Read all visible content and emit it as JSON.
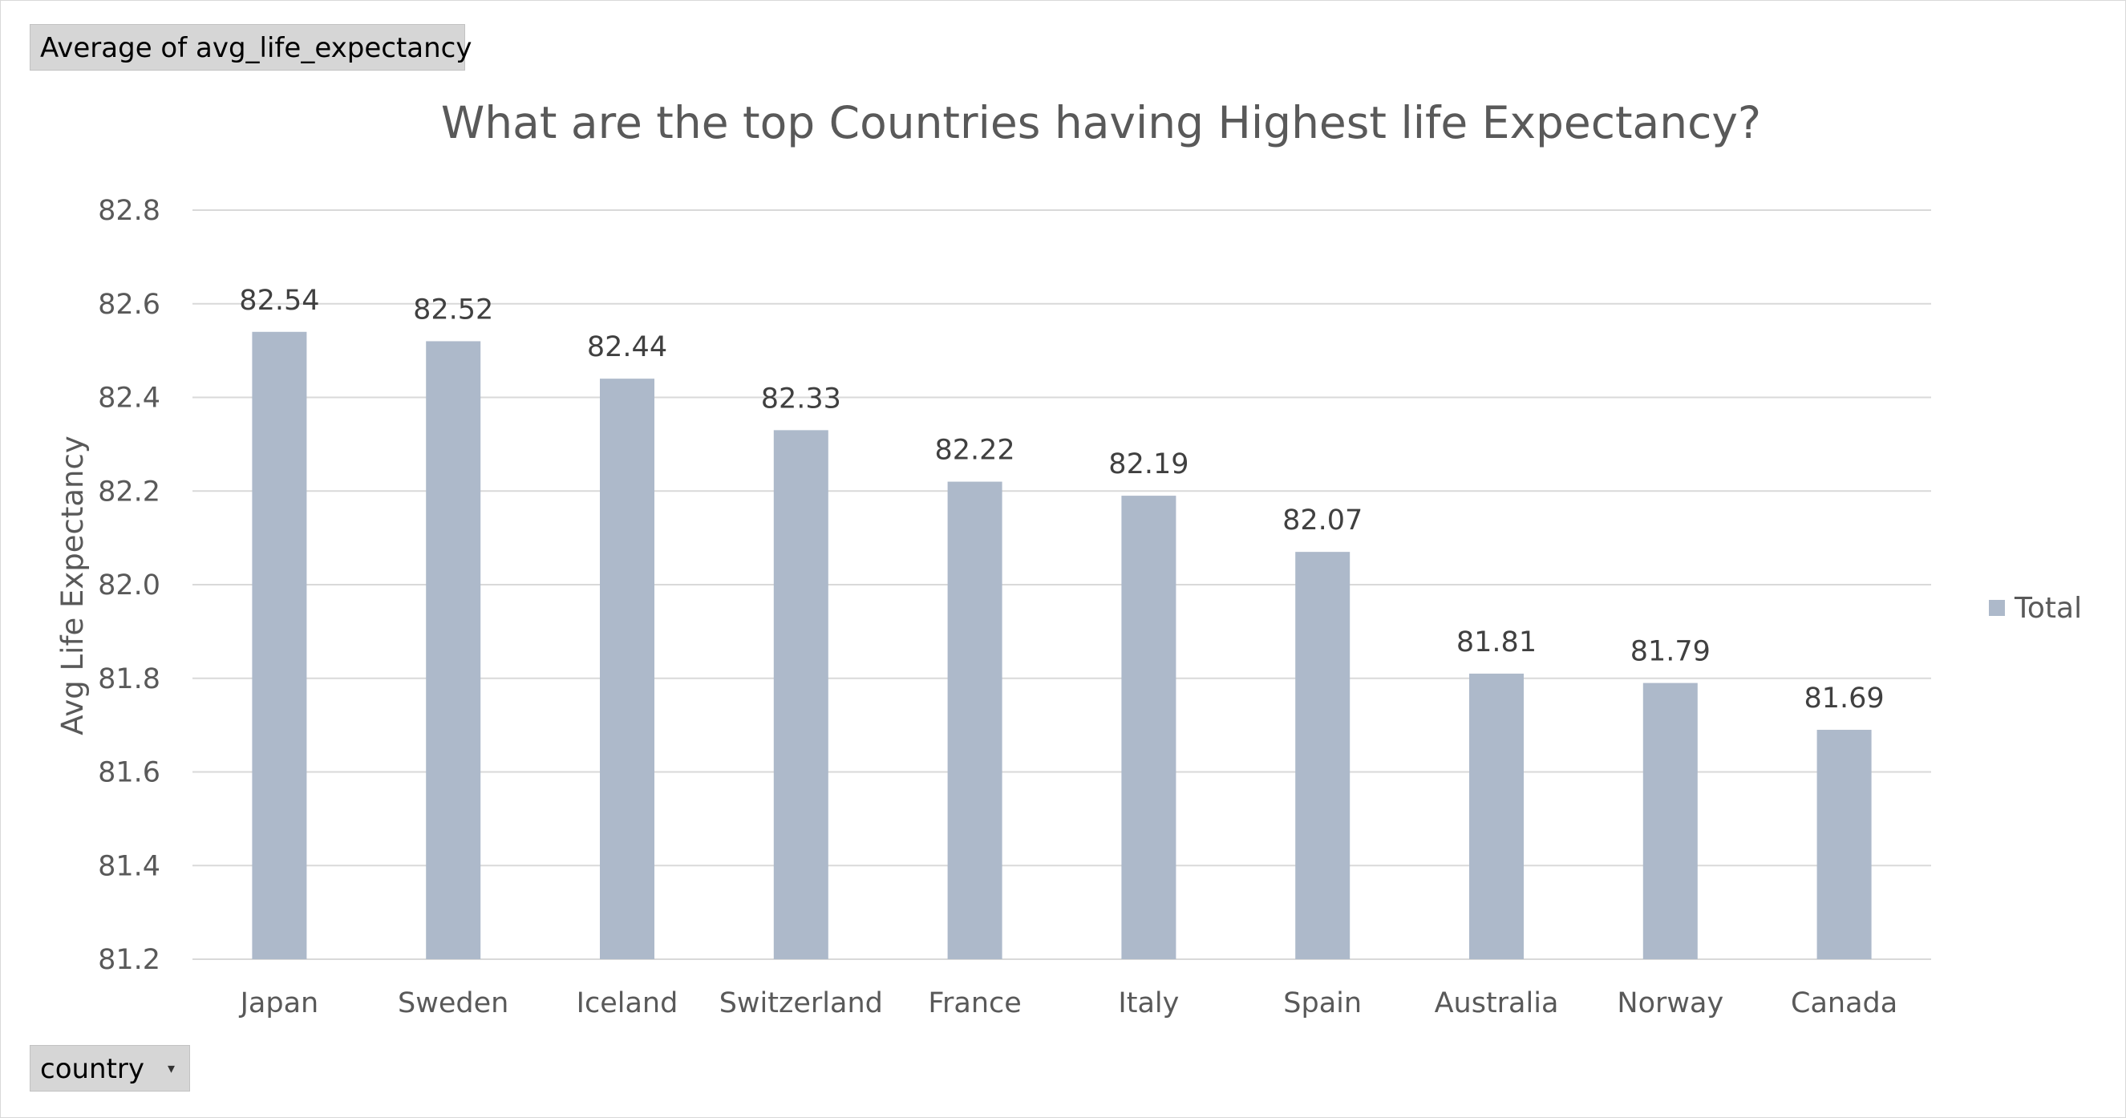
{
  "pivot_fields": {
    "value_field_label": "Average  of avg_life_expectancy",
    "axis_field_label": "country",
    "dropdown_icon": "dropdown-arrow-icon"
  },
  "chart_data": {
    "type": "bar",
    "title": "What are the top Countries having Highest life Expectancy?",
    "xlabel": "",
    "ylabel": "Avg Life Expectancy",
    "categories": [
      "Japan",
      "Sweden",
      "Iceland",
      "Switzerland",
      "France",
      "Italy",
      "Spain",
      "Australia",
      "Norway",
      "Canada"
    ],
    "series": [
      {
        "name": "Total",
        "values": [
          82.54,
          82.52,
          82.44,
          82.33,
          82.22,
          82.19,
          82.07,
          81.81,
          81.79,
          81.69
        ],
        "labels": [
          "82.54",
          "82.52",
          "82.44",
          "82.33",
          "82.22",
          "82.19",
          "82.07",
          "81.81",
          "81.79",
          "81.69"
        ],
        "color": "#adb9ca"
      }
    ],
    "ylim": [
      81.2,
      82.8
    ],
    "yticks": [
      "81.2",
      "81.4",
      "81.6",
      "81.8",
      "82.0",
      "82.2",
      "82.4",
      "82.6",
      "82.8"
    ],
    "grid": true,
    "legend_position": "right",
    "colors": {
      "bar": "#adb9ca",
      "gridline": "#d9d9d9",
      "text": "#595959"
    }
  }
}
